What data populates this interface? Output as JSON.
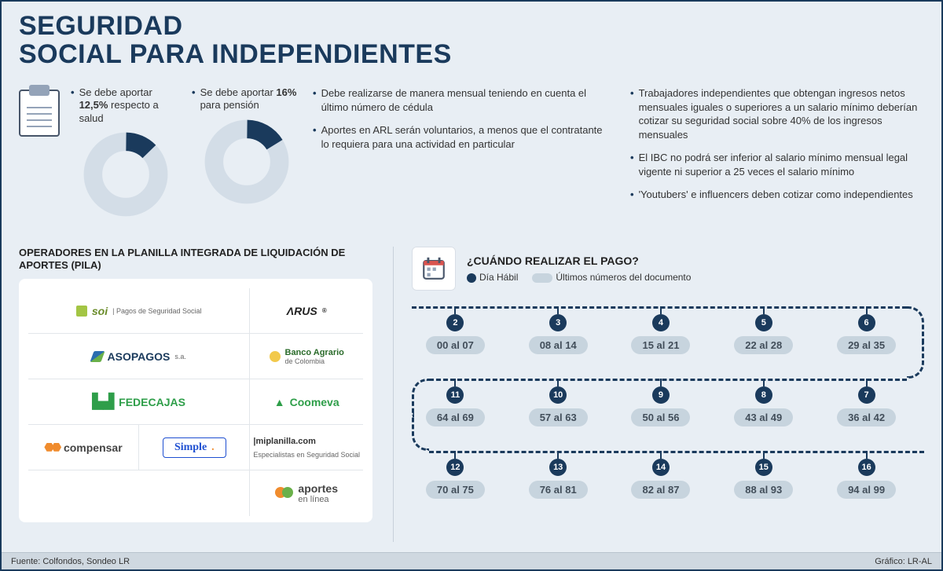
{
  "title_line1": "SEGURIDAD",
  "title_line2": "SOCIAL PARA  INDEPENDIENTES",
  "colors": {
    "primary": "#1a3a5c",
    "ring_bg": "#d3dde7",
    "pill_bg": "#c7d4de",
    "panel_bg": "#ffffff",
    "page_bg": "#e8eef4"
  },
  "donuts": [
    {
      "label_pre": "Se debe aportar ",
      "value_text": "12,5%",
      "label_post": " respecto a salud",
      "percent": 12.5
    },
    {
      "label_pre": "Se debe aportar ",
      "value_text": "16%",
      "label_post": " para pensión",
      "percent": 16
    }
  ],
  "bullets_left": [
    "Debe realizarse de manera mensual teniendo en cuenta el último número de cédula",
    "Aportes en ARL serán voluntarios, a menos que el contratante lo requiera para una actividad en particular"
  ],
  "bullets_right": [
    "Trabajadores independientes que obtengan ingresos netos mensuales iguales o superiores a un salario mínimo deberían cotizar su seguridad social sobre 40% de los ingresos mensuales",
    "El IBC no podrá ser inferior al salario mínimo mensual legal vigente ni superior a 25 veces el salario mínimo",
    "'Youtubers' e influencers deben cotizar como independientes"
  ],
  "operators": {
    "title": "OPERADORES EN LA PLANILLA INTEGRADA DE LIQUIDACIÓN DE APORTES (PILA)",
    "items": [
      "SOI",
      "ARUS",
      "ASOPAGOS s.a.",
      "Banco Agrario de Colombia",
      "FEDECAJAS",
      "Coomeva",
      "compensar",
      "Simple",
      "miplanilla.com",
      "aportes en línea"
    ]
  },
  "payment": {
    "title": "¿CUÁNDO REALIZAR EL PAGO?",
    "legend_day": "Día Hábil",
    "legend_range": "Últimos números del documento",
    "rows": [
      [
        {
          "day": "2",
          "range": "00 al 07"
        },
        {
          "day": "3",
          "range": "08 al 14"
        },
        {
          "day": "4",
          "range": "15 al 21"
        },
        {
          "day": "5",
          "range": "22 al 28"
        },
        {
          "day": "6",
          "range": "29 al 35"
        }
      ],
      [
        {
          "day": "11",
          "range": "64 al 69"
        },
        {
          "day": "10",
          "range": "57 al 63"
        },
        {
          "day": "9",
          "range": "50 al 56"
        },
        {
          "day": "8",
          "range": "43 al 49"
        },
        {
          "day": "7",
          "range": "36 al 42"
        }
      ],
      [
        {
          "day": "12",
          "range": "70 al 75"
        },
        {
          "day": "13",
          "range": "76 al 81"
        },
        {
          "day": "14",
          "range": "82 al 87"
        },
        {
          "day": "15",
          "range": "88 al 93"
        },
        {
          "day": "16",
          "range": "94 al 99"
        }
      ]
    ]
  },
  "footer": {
    "source": "Fuente: Colfondos, Sondeo LR",
    "credit": "Gráfico: LR-AL"
  }
}
